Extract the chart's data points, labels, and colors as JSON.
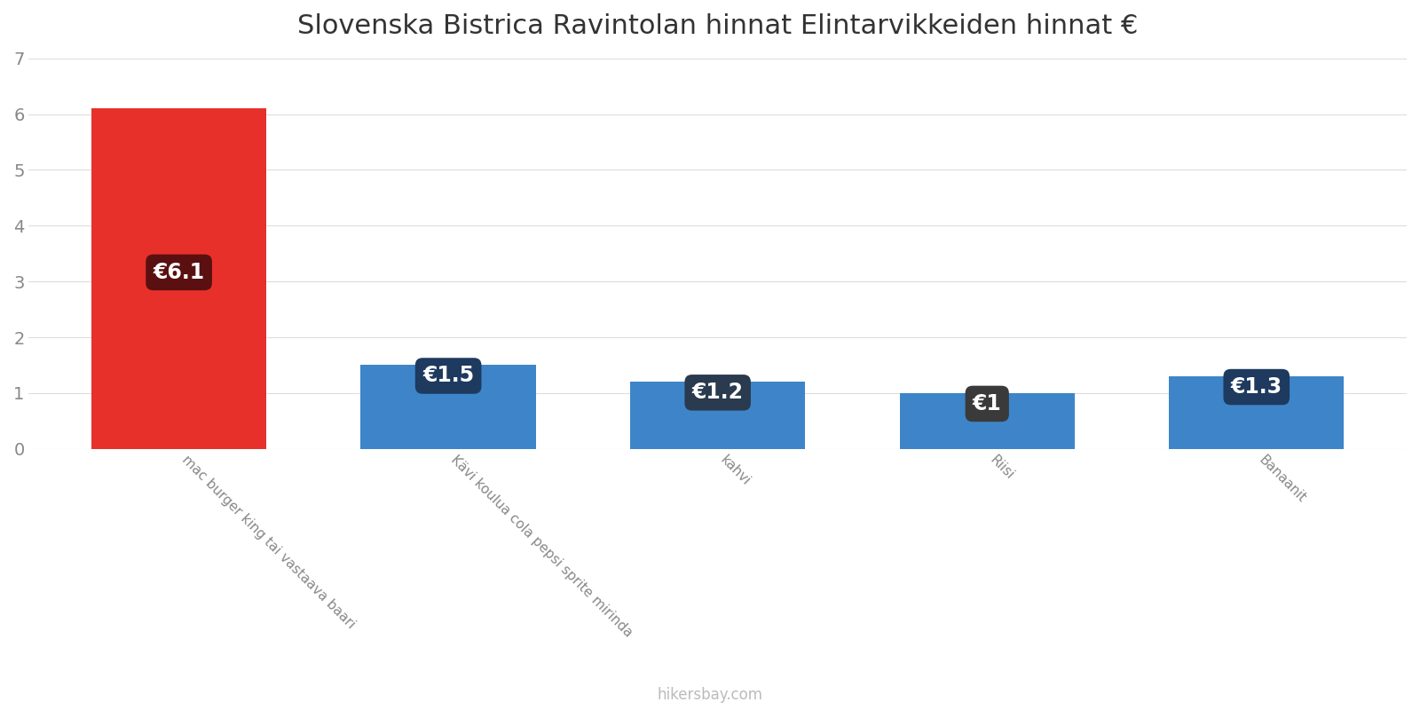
{
  "title": "Slovenska Bistrica Ravintolan hinnat Elintarvikkeiden hinnat €",
  "categories": [
    "mac burger king tai vastaava baari",
    "Kävi koulua cola pepsi sprite mirinda",
    "kahvi",
    "Riisi",
    "Banaanit"
  ],
  "values": [
    6.1,
    1.5,
    1.2,
    1.0,
    1.3
  ],
  "labels": [
    "€6.1",
    "€1.5",
    "€1.2",
    "€1",
    "€1.3"
  ],
  "bar_colors": [
    "#e8302a",
    "#3d85c8",
    "#3d85c8",
    "#3d85c8",
    "#3d85c8"
  ],
  "label_bg_colors": [
    "#5a1010",
    "#1e3a5f",
    "#2a3a4f",
    "#3a3a3a",
    "#1e3a5f"
  ],
  "ylim": [
    0,
    7
  ],
  "yticks": [
    0,
    1,
    2,
    3,
    4,
    5,
    6,
    7
  ],
  "background_color": "#ffffff",
  "grid_color": "#dddddd",
  "title_fontsize": 22,
  "bar_label_fontsize": 17,
  "footer_text": "hikersbay.com",
  "footer_color": "#bbbbbb"
}
